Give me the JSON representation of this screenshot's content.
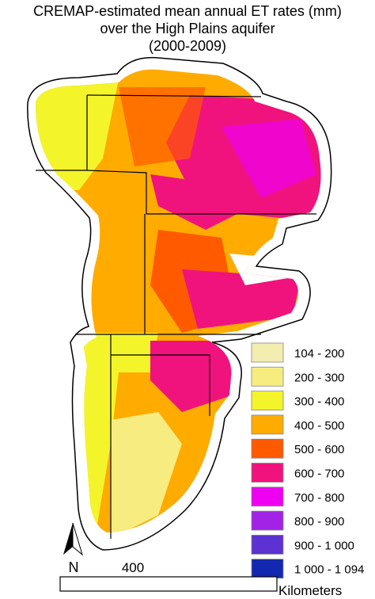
{
  "title": [
    "CREMAP-estimated mean annual ET rates (mm)",
    "over the High Plains aquifer",
    "(2000-2009)"
  ],
  "legend": [
    {
      "label": "104 - 200",
      "color": "#f3edb0"
    },
    {
      "label": "200 - 300",
      "color": "#f7ec80"
    },
    {
      "label": "300 - 400",
      "color": "#f4f42a"
    },
    {
      "label": "400 - 500",
      "color": "#ffab00"
    },
    {
      "label": "500 - 600",
      "color": "#ff5a00"
    },
    {
      "label": "600 - 700",
      "color": "#f0137d"
    },
    {
      "label": "700 - 800",
      "color": "#f000f0"
    },
    {
      "label": "800 - 900",
      "color": "#a222e6"
    },
    {
      "label": "900 - 1 000",
      "color": "#5c32d2"
    },
    {
      "label": "1 000 - 1 094",
      "color": "#1228b0"
    }
  ],
  "north": "N",
  "scale": {
    "distance": "400",
    "unit": "Kilometers"
  }
}
